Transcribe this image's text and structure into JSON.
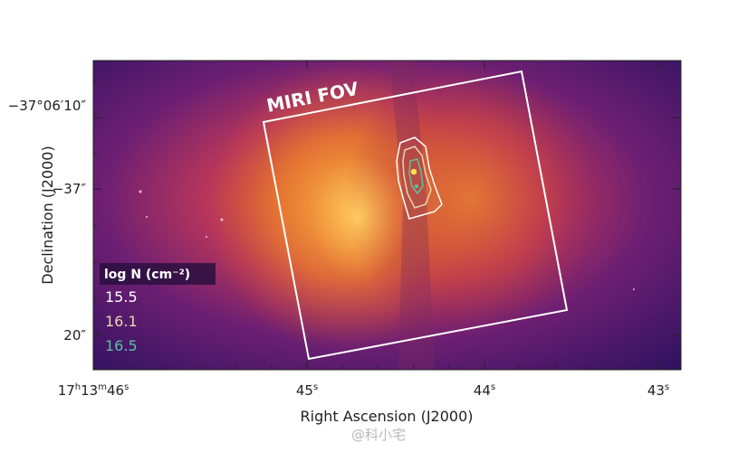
{
  "image": {
    "fov_label": "MIRI FOV",
    "legend": {
      "title": "log N (cm⁻²)",
      "items": [
        {
          "label": "15.5",
          "color": "#ffffff"
        },
        {
          "label": "16.1",
          "color": "#e8d6ad"
        },
        {
          "label": "16.5",
          "color": "#5fc0a0"
        }
      ]
    },
    "x_axis": {
      "title": "Right Ascension (J2000)",
      "ticks": [
        {
          "base": "17",
          "h": "h",
          "m_val": "13",
          "m": "m",
          "s_val": "46",
          "s": "s"
        },
        {
          "s_val": "45",
          "s": "s"
        },
        {
          "s_val": "44",
          "s": "s"
        },
        {
          "s_val": "43",
          "s": "s"
        }
      ]
    },
    "y_axis": {
      "title": "Declination (J2000)",
      "ticks": [
        "−37°06′10″",
        "−37″",
        "20″"
      ]
    },
    "colors": {
      "background_dark": "#3a1466",
      "nebula_bright": "#f08a2a",
      "nebula_core": "#f7b34a",
      "frame": "#ffffff"
    },
    "watermark": "@科小宅"
  }
}
